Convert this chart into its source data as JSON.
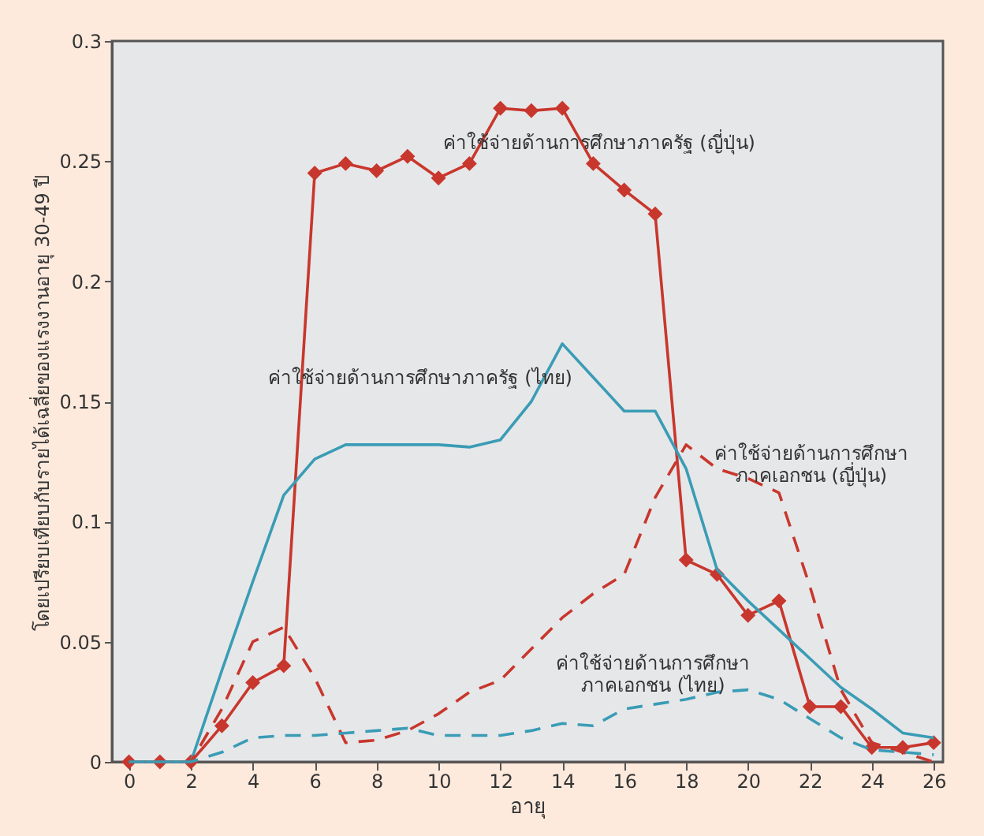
{
  "chart_data": {
    "type": "line",
    "xlabel": "อายุ",
    "ylabel": "โดยเปรียบเทียบกับรายได้เฉลี่ยของแรงงานอายุ 30-49 ปี",
    "x": [
      0,
      1,
      2,
      3,
      4,
      5,
      6,
      7,
      8,
      9,
      10,
      11,
      12,
      13,
      14,
      15,
      16,
      17,
      18,
      19,
      20,
      21,
      22,
      23,
      24,
      25,
      26
    ],
    "series": [
      {
        "name": "ค่าใช้จ่ายด้านการศึกษาภาครัฐ (ญี่ปุ่น)",
        "color": "#c8372d",
        "marker": "diamond",
        "line_style": "solid",
        "values": [
          0,
          0,
          0,
          0.015,
          0.033,
          0.04,
          0.245,
          0.249,
          0.246,
          0.252,
          0.243,
          0.249,
          0.272,
          0.271,
          0.272,
          0.249,
          0.238,
          0.228,
          0.084,
          0.078,
          0.061,
          0.067,
          0.023,
          0.023,
          0.006,
          0.006,
          0.008
        ]
      },
      {
        "name": "ค่าใช้จ่ายด้านการศึกษาภาครัฐ (ไทย)",
        "color": "#3a9cb5",
        "marker": "none",
        "line_style": "solid",
        "values": [
          0,
          0,
          0,
          0.038,
          0.075,
          0.111,
          0.126,
          0.132,
          0.132,
          0.132,
          0.132,
          0.131,
          0.134,
          0.15,
          0.174,
          0.16,
          0.146,
          0.146,
          0.122,
          0.08,
          0.067,
          0.055,
          0.043,
          0.031,
          0.022,
          0.012,
          0.01
        ]
      },
      {
        "name": "ค่าใช้จ่ายด้านการศึกษา\nภาคเอกชน (ญี่ปุ่น)",
        "color": "#c8372d",
        "marker": "none",
        "line_style": "dashed",
        "values": [
          0,
          0,
          0,
          0.022,
          0.05,
          0.056,
          0.035,
          0.008,
          0.009,
          0.013,
          0.02,
          0.029,
          0.034,
          0.047,
          0.06,
          0.07,
          0.078,
          0.11,
          0.132,
          0.122,
          0.118,
          0.112,
          0.073,
          0.03,
          0.008,
          0.004,
          0
        ]
      },
      {
        "name": "ค่าใช้จ่ายด้านการศึกษา\nภาคเอกชน (ไทย)",
        "color": "#3a9cb5",
        "marker": "none",
        "line_style": "dashed",
        "values": [
          0,
          0,
          0,
          0.004,
          0.01,
          0.011,
          0.011,
          0.012,
          0.013,
          0.014,
          0.011,
          0.011,
          0.011,
          0.013,
          0.016,
          0.015,
          0.022,
          0.024,
          0.026,
          0.029,
          0.03,
          0.026,
          0.018,
          0.01,
          0.005,
          0.004,
          0.003
        ]
      }
    ],
    "xlim": [
      -0.55,
      26.3
    ],
    "xticks": [
      0,
      2,
      4,
      6,
      8,
      10,
      12,
      14,
      16,
      18,
      20,
      22,
      24,
      26
    ],
    "ylim": [
      0,
      0.3
    ],
    "yticks": [
      0,
      0.05,
      0.1,
      0.15,
      0.2,
      0.25,
      0.3
    ],
    "grid": false
  }
}
